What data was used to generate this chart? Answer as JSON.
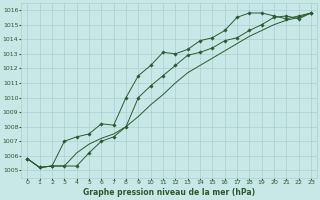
{
  "title": "Graphe pression niveau de la mer (hPa)",
  "background_color": "#c8e8e8",
  "grid_color": "#aacfcf",
  "line_color": "#2d5a2d",
  "xlim": [
    -0.5,
    23.5
  ],
  "ylim": [
    1004.5,
    1016.5
  ],
  "yticks": [
    1005,
    1006,
    1007,
    1008,
    1009,
    1010,
    1011,
    1012,
    1013,
    1014,
    1015,
    1016
  ],
  "xticks": [
    0,
    1,
    2,
    3,
    4,
    5,
    6,
    7,
    8,
    9,
    10,
    11,
    12,
    13,
    14,
    15,
    16,
    17,
    18,
    19,
    20,
    21,
    22,
    23
  ],
  "series1": {
    "x": [
      0,
      1,
      2,
      3,
      4,
      5,
      6,
      7,
      8,
      9,
      10,
      11,
      12,
      13,
      14,
      15,
      16,
      17,
      18,
      19,
      20,
      21,
      22,
      23
    ],
    "y": [
      1005.8,
      1005.2,
      1005.3,
      1007.0,
      1007.3,
      1007.5,
      1008.2,
      1008.1,
      1010.0,
      1011.5,
      1012.2,
      1013.1,
      1013.0,
      1013.3,
      1013.9,
      1014.1,
      1014.6,
      1015.5,
      1015.8,
      1015.8,
      1015.6,
      1015.4,
      1015.6,
      1015.8
    ]
  },
  "series2": {
    "x": [
      0,
      1,
      2,
      3,
      4,
      5,
      6,
      7,
      8,
      9,
      10,
      11,
      12,
      13,
      14,
      15,
      16,
      17,
      18,
      19,
      20,
      21,
      22,
      23
    ],
    "y": [
      1005.8,
      1005.2,
      1005.3,
      1005.3,
      1005.3,
      1006.2,
      1007.0,
      1007.3,
      1008.0,
      1010.0,
      1010.8,
      1011.5,
      1012.2,
      1012.9,
      1013.1,
      1013.4,
      1013.9,
      1014.1,
      1014.6,
      1015.0,
      1015.5,
      1015.6,
      1015.4,
      1015.8
    ]
  },
  "series3": {
    "x": [
      0,
      1,
      2,
      3,
      4,
      5,
      6,
      7,
      8,
      9,
      10,
      11,
      12,
      13,
      14,
      15,
      16,
      17,
      18,
      19,
      20,
      21,
      22,
      23
    ],
    "y": [
      1005.8,
      1005.2,
      1005.3,
      1005.3,
      1006.2,
      1006.8,
      1007.2,
      1007.5,
      1008.0,
      1008.7,
      1009.5,
      1010.2,
      1011.0,
      1011.7,
      1012.2,
      1012.7,
      1013.2,
      1013.7,
      1014.2,
      1014.6,
      1015.0,
      1015.3,
      1015.5,
      1015.8
    ]
  }
}
